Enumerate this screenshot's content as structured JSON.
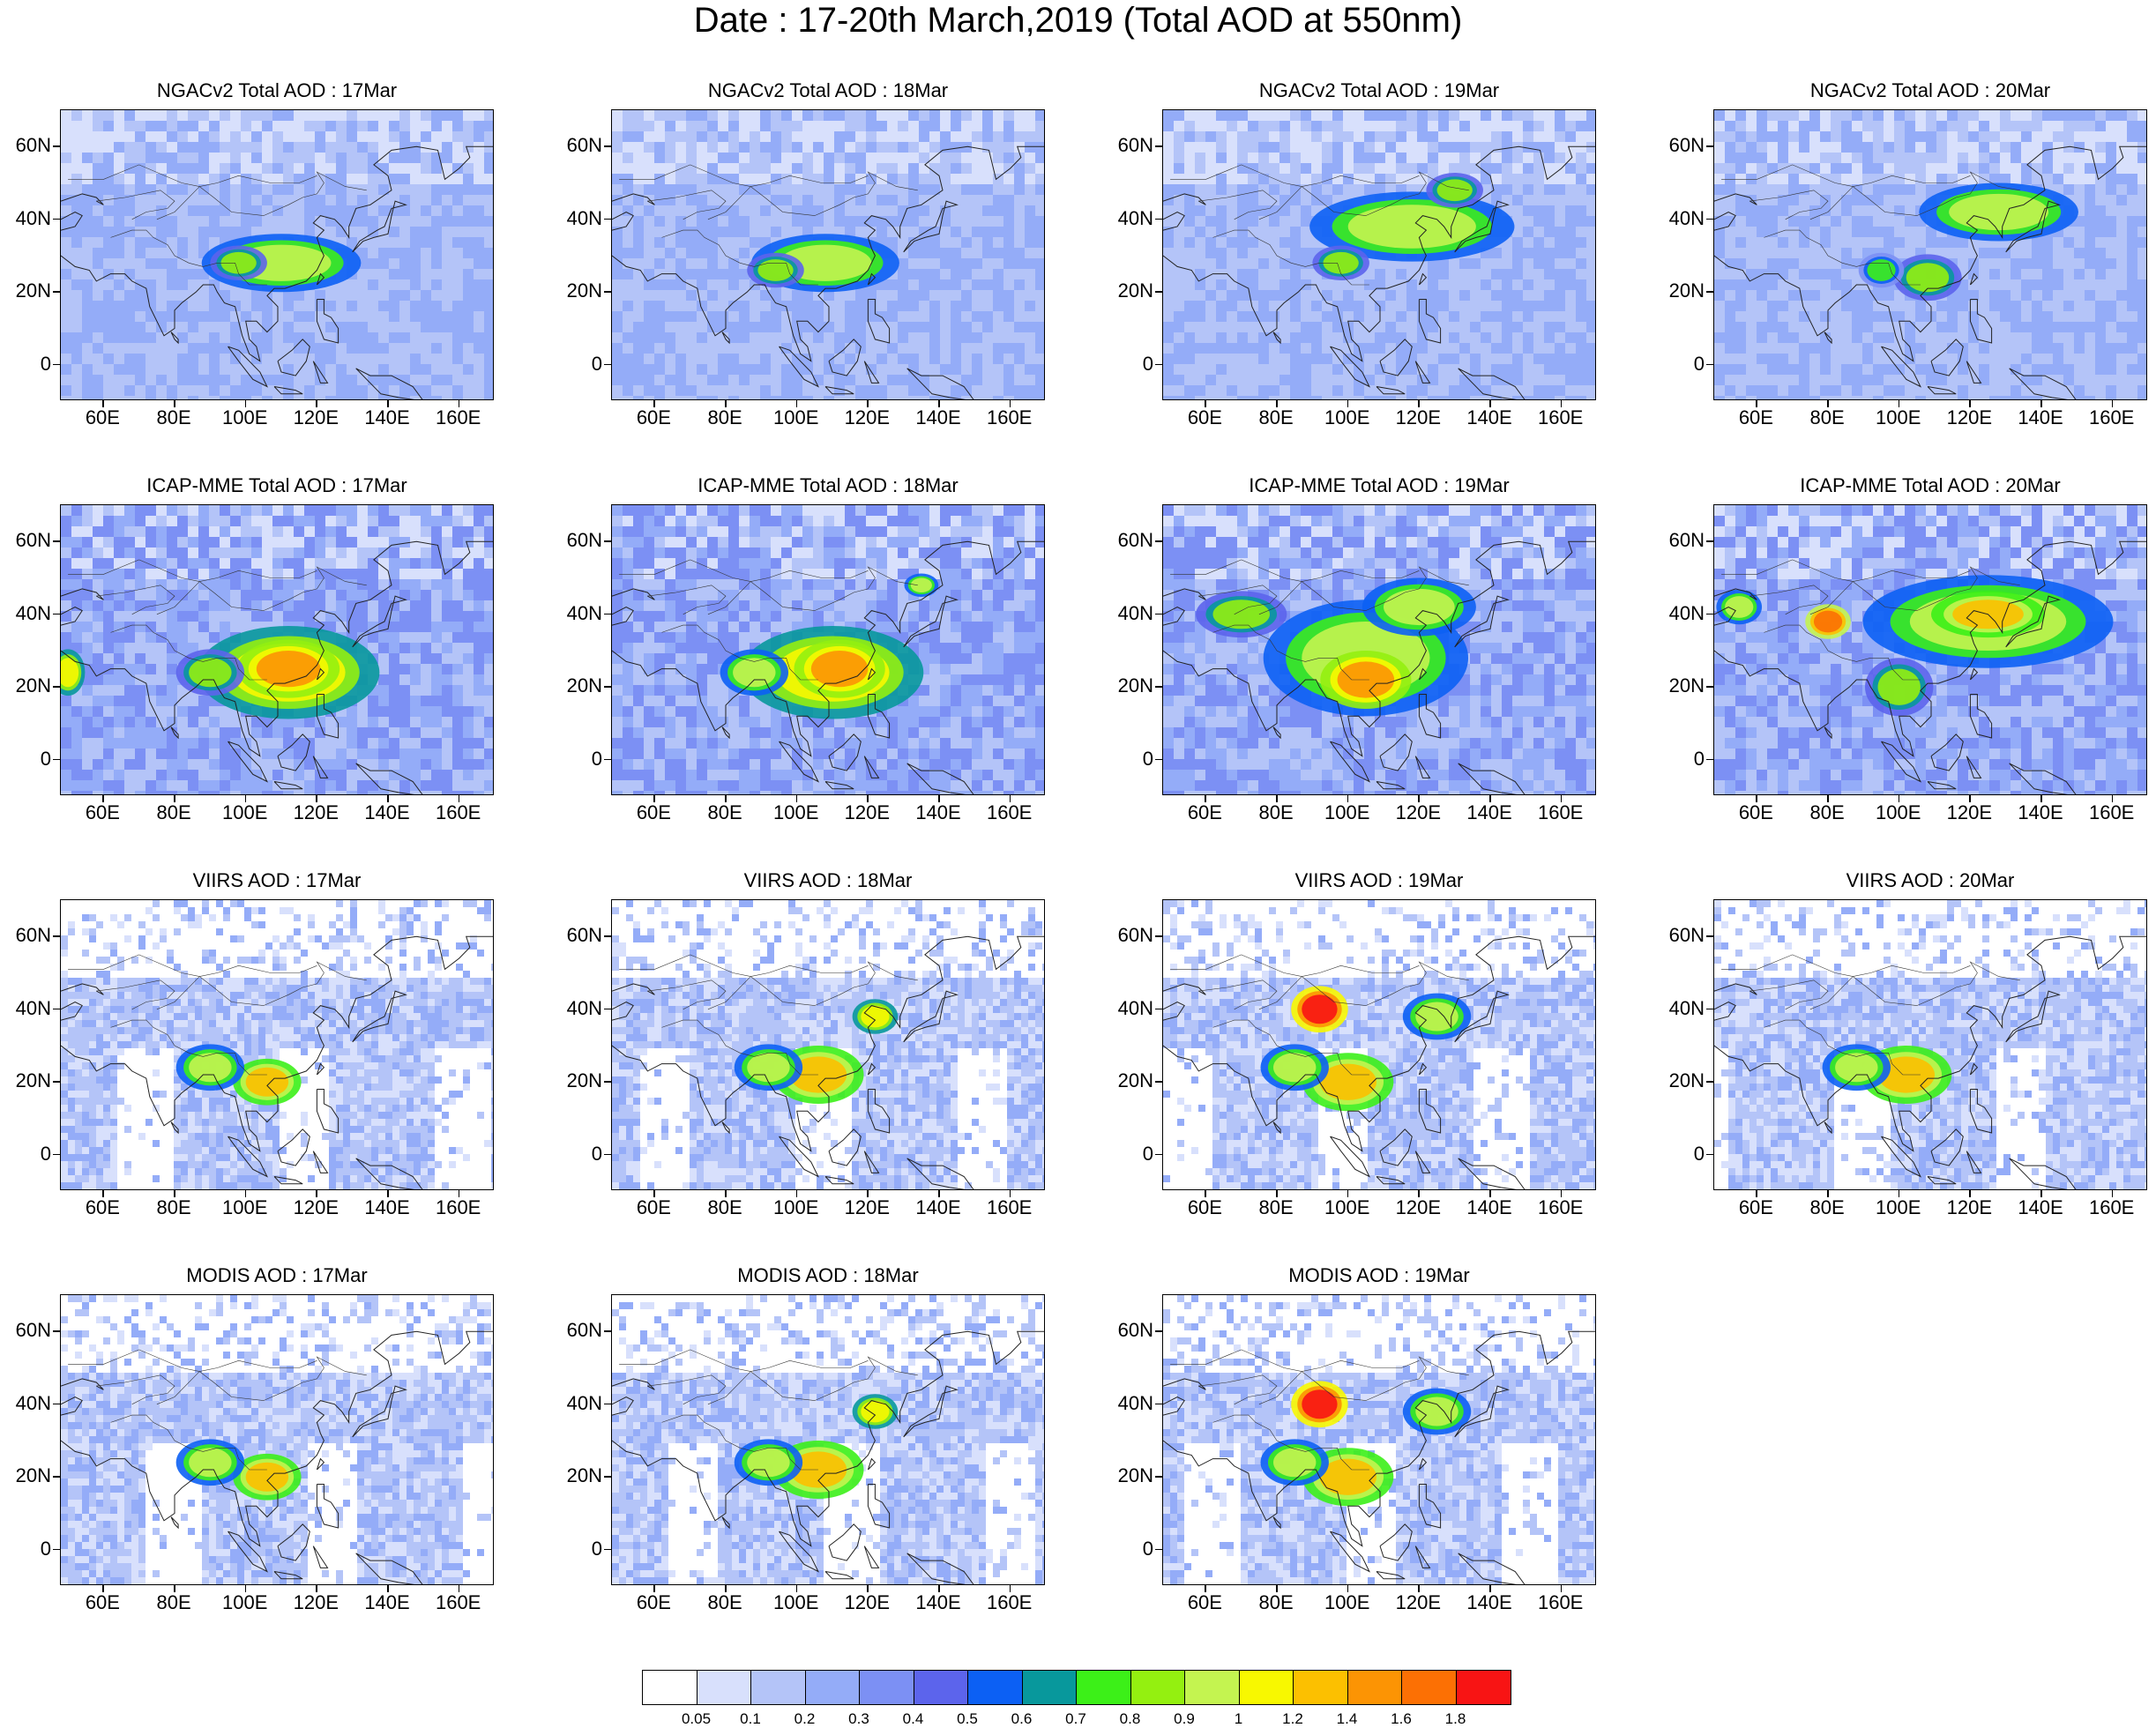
{
  "title": "Date : 17-20th March,2019 (Total AOD at 550nm)",
  "axes": {
    "lat_labels": [
      "60N",
      "40N",
      "20N",
      "0"
    ],
    "lon_labels": [
      "60E",
      "80E",
      "100E",
      "120E",
      "140E",
      "160E"
    ]
  },
  "panels": [
    {
      "title": "NGACv2 Total AOD : 17Mar",
      "kind": "model",
      "day": 17
    },
    {
      "title": "NGACv2 Total AOD : 18Mar",
      "kind": "model",
      "day": 18
    },
    {
      "title": "NGACv2 Total AOD : 19Mar",
      "kind": "model",
      "day": 19
    },
    {
      "title": "NGACv2 Total AOD : 20Mar",
      "kind": "model",
      "day": 20
    },
    {
      "title": "ICAP-MME Total AOD : 17Mar",
      "kind": "ensemble",
      "day": 17
    },
    {
      "title": "ICAP-MME Total AOD : 18Mar",
      "kind": "ensemble",
      "day": 18
    },
    {
      "title": "ICAP-MME Total AOD : 19Mar",
      "kind": "ensemble",
      "day": 19
    },
    {
      "title": "ICAP-MME Total AOD : 20Mar",
      "kind": "ensemble",
      "day": 20
    },
    {
      "title": "VIIRS AOD : 17Mar",
      "kind": "satellite",
      "day": 17
    },
    {
      "title": "VIIRS AOD : 18Mar",
      "kind": "satellite",
      "day": 18
    },
    {
      "title": "VIIRS AOD : 19Mar",
      "kind": "satellite",
      "day": 19
    },
    {
      "title": "VIIRS AOD : 20Mar",
      "kind": "satellite",
      "day": 20
    },
    {
      "title": "MODIS AOD : 17Mar",
      "kind": "satellite",
      "day": 17
    },
    {
      "title": "MODIS AOD : 18Mar",
      "kind": "satellite",
      "day": 18
    },
    {
      "title": "MODIS AOD : 19Mar",
      "kind": "satellite",
      "day": 19
    }
  ],
  "colorbar": {
    "labels": [
      "0.05",
      "0.1",
      "0.2",
      "0.3",
      "0.4",
      "0.5",
      "0.6",
      "0.7",
      "0.8",
      "0.9",
      "1",
      "1.2",
      "1.4",
      "1.6",
      "1.8"
    ],
    "colors": [
      "#ffffff",
      "#d8e0fc",
      "#b4c4f8",
      "#94acf8",
      "#7c90f4",
      "#5c64ec",
      "#0c60f4",
      "#08989c",
      "#3cf018",
      "#94f010",
      "#c4f450",
      "#f8f800",
      "#fcc000",
      "#fc9404",
      "#fc7004",
      "#f81414"
    ]
  }
}
